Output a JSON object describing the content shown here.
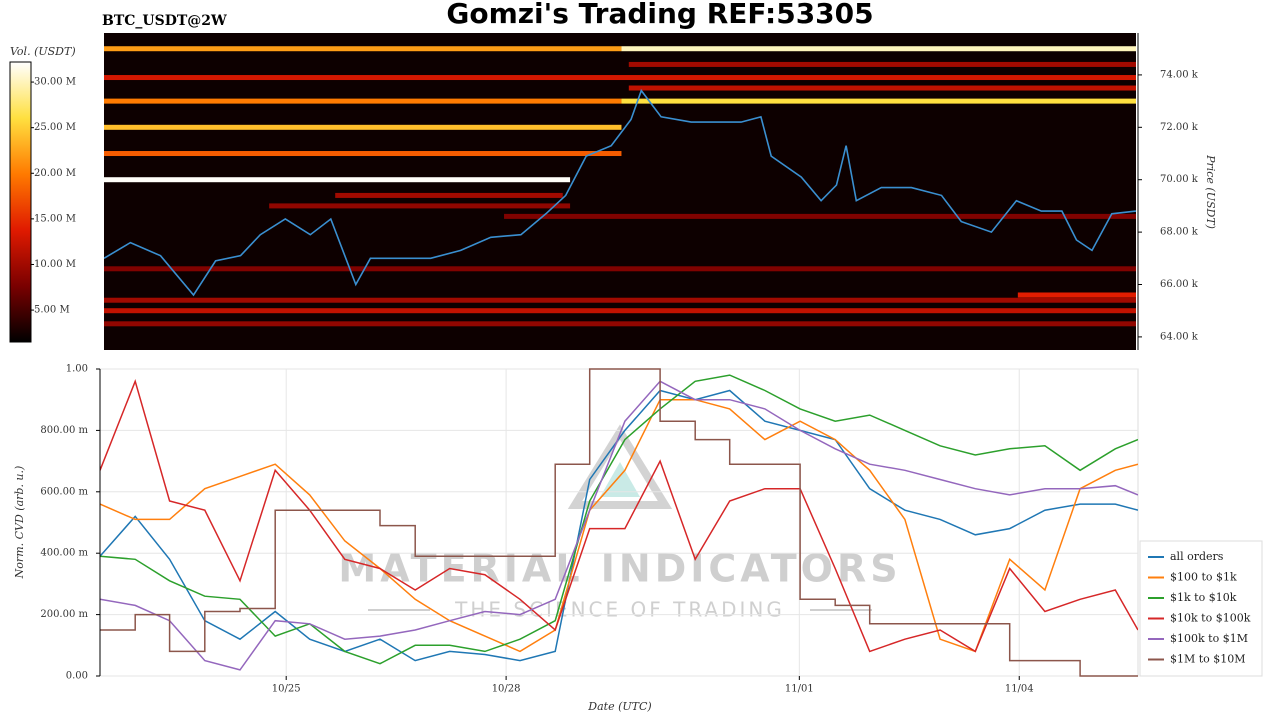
{
  "chart_data": [
    {
      "type": "heatmap",
      "symbol": "BTC_USDT@2W",
      "title": "Gomzi's Trading REF:53305",
      "colorbar_label": "Vol. (USDT)",
      "ylabel": "Price (USDT)",
      "colormap": [
        "#000000",
        "#7a0000",
        "#e01a00",
        "#ff7a00",
        "#ffe040",
        "#ffffff"
      ],
      "clim": [
        1500000,
        32200000
      ],
      "cticks": [
        {
          "value": 5000000,
          "label": "5.00 M"
        },
        {
          "value": 10000000,
          "label": "10.00 M"
        },
        {
          "value": 15000000,
          "label": "15.00 M"
        },
        {
          "value": 20000000,
          "label": "20.00 M"
        },
        {
          "value": 25000000,
          "label": "25.00 M"
        },
        {
          "value": 30000000,
          "label": "30.00 M"
        }
      ],
      "xlim": [
        0.05,
        14.11
      ],
      "ylim": [
        63500,
        75600
      ],
      "yticks": [
        {
          "value": 64000,
          "label": "64.00 k"
        },
        {
          "value": 66000,
          "label": "66.00 k"
        },
        {
          "value": 68000,
          "label": "68.00 k"
        },
        {
          "value": 70000,
          "label": "70.00 k"
        },
        {
          "value": 72000,
          "label": "72.00 k"
        },
        {
          "value": 74000,
          "label": "74.00 k"
        }
      ],
      "levels": [
        {
          "price": 75000,
          "start": 0.05,
          "end": 7.1,
          "volume": 22000000
        },
        {
          "price": 75000,
          "start": 7.1,
          "end": 14.11,
          "volume": 30000000
        },
        {
          "price": 74400,
          "start": 7.2,
          "end": 14.11,
          "volume": 10000000
        },
        {
          "price": 73900,
          "start": 0.05,
          "end": 14.11,
          "volume": 13000000
        },
        {
          "price": 73500,
          "start": 7.2,
          "end": 14.11,
          "volume": 12000000
        },
        {
          "price": 73000,
          "start": 0.05,
          "end": 7.1,
          "volume": 20000000
        },
        {
          "price": 73000,
          "start": 7.1,
          "end": 14.11,
          "volume": 26000000
        },
        {
          "price": 72000,
          "start": 0.05,
          "end": 7.1,
          "volume": 24000000
        },
        {
          "price": 71000,
          "start": 0.05,
          "end": 7.1,
          "volume": 18000000
        },
        {
          "price": 70000,
          "start": 0.05,
          "end": 6.4,
          "volume": 32000000
        },
        {
          "price": 69400,
          "start": 3.2,
          "end": 6.3,
          "volume": 10000000
        },
        {
          "price": 69000,
          "start": 2.3,
          "end": 6.4,
          "volume": 9000000
        },
        {
          "price": 68600,
          "start": 5.5,
          "end": 14.11,
          "volume": 8000000
        },
        {
          "price": 66600,
          "start": 0.05,
          "end": 14.11,
          "volume": 8000000
        },
        {
          "price": 65600,
          "start": 12.5,
          "end": 14.11,
          "volume": 14000000
        },
        {
          "price": 65400,
          "start": 0.05,
          "end": 14.11,
          "volume": 10000000
        },
        {
          "price": 65000,
          "start": 0.05,
          "end": 14.11,
          "volume": 12000000
        },
        {
          "price": 64500,
          "start": 0.05,
          "end": 14.11,
          "volume": 9000000
        }
      ],
      "x": [
        0.05,
        0.41,
        0.82,
        1.27,
        1.57,
        1.91,
        2.18,
        2.52,
        2.86,
        3.14,
        3.48,
        3.68,
        4.09,
        4.5,
        4.91,
        5.32,
        5.73,
        6.07,
        6.34,
        6.62,
        6.96,
        7.23,
        7.37,
        7.64,
        8.05,
        8.46,
        8.73,
        9.0,
        9.14,
        9.55,
        9.82,
        10.03,
        10.16,
        10.3,
        10.64,
        11.05,
        11.46,
        11.73,
        12.14,
        12.48,
        12.82,
        13.1,
        13.3,
        13.51,
        13.78,
        14.11
      ],
      "series": [
        {
          "color": "#3a8fd0",
          "values": [
            67000,
            67600,
            67100,
            65600,
            66900,
            67100,
            67900,
            68500,
            67900,
            68500,
            66000,
            67000,
            67000,
            67000,
            67300,
            67800,
            67900,
            68700,
            69400,
            70900,
            71300,
            72300,
            73400,
            72400,
            72200,
            72200,
            72200,
            72400,
            70900,
            70100,
            69200,
            69800,
            71300,
            69200,
            69700,
            69700,
            69400,
            68400,
            68000,
            69200,
            68800,
            68800,
            67700,
            67300,
            68700,
            68800
          ]
        }
      ]
    },
    {
      "type": "line",
      "xlabel": "Date (UTC)",
      "ylabel": "Norm. CVD (arb. u.)",
      "watermark": {
        "title": "MATERIAL INDICATORS",
        "subtitle": "THE SCIENCE OF TRADING"
      },
      "grid": true,
      "legend": "lower right",
      "xlim": [
        0,
        14.16
      ],
      "xticks": [
        {
          "value": 2.54,
          "label": "10/25"
        },
        {
          "value": 5.54,
          "label": "10/28"
        },
        {
          "value": 9.54,
          "label": "11/01"
        },
        {
          "value": 12.54,
          "label": "11/04"
        }
      ],
      "ylim": [
        0,
        1
      ],
      "yticks": [
        {
          "value": 0,
          "label": "0.00"
        },
        {
          "value": 0.2,
          "label": "200.00 m"
        },
        {
          "value": 0.4,
          "label": "400.00 m"
        },
        {
          "value": 0.6,
          "label": "600.00 m"
        },
        {
          "value": 0.8,
          "label": "800.00 m"
        },
        {
          "value": 1,
          "label": "1.00"
        }
      ],
      "x": [
        0,
        0.48,
        0.95,
        1.43,
        1.91,
        2.39,
        2.86,
        3.34,
        3.82,
        4.3,
        4.77,
        5.25,
        5.73,
        6.21,
        6.68,
        7.16,
        7.64,
        8.12,
        8.59,
        9.07,
        9.55,
        10.03,
        10.5,
        10.98,
        11.46,
        11.94,
        12.41,
        12.89,
        13.37,
        13.85,
        14.16
      ],
      "series": [
        {
          "name": "all orders",
          "color": "#1f77b4",
          "values": [
            0.39,
            0.52,
            0.38,
            0.18,
            0.12,
            0.21,
            0.12,
            0.08,
            0.12,
            0.05,
            0.08,
            0.07,
            0.05,
            0.08,
            0.64,
            0.8,
            0.93,
            0.9,
            0.93,
            0.83,
            0.8,
            0.77,
            0.61,
            0.54,
            0.51,
            0.46,
            0.48,
            0.54,
            0.56,
            0.56,
            0.54
          ]
        },
        {
          "name": "$100 to $1k",
          "color": "#ff7f0e",
          "values": [
            0.56,
            0.51,
            0.51,
            0.61,
            0.65,
            0.69,
            0.59,
            0.44,
            0.35,
            0.25,
            0.18,
            0.13,
            0.08,
            0.15,
            0.54,
            0.67,
            0.9,
            0.9,
            0.87,
            0.77,
            0.83,
            0.77,
            0.67,
            0.51,
            0.12,
            0.08,
            0.38,
            0.28,
            0.61,
            0.67,
            0.69
          ]
        },
        {
          "name": "$1k to $10k",
          "color": "#2ca02c",
          "values": [
            0.39,
            0.38,
            0.31,
            0.26,
            0.25,
            0.13,
            0.17,
            0.08,
            0.04,
            0.1,
            0.1,
            0.08,
            0.12,
            0.18,
            0.57,
            0.77,
            0.87,
            0.96,
            0.98,
            0.93,
            0.87,
            0.83,
            0.85,
            0.8,
            0.75,
            0.72,
            0.74,
            0.75,
            0.67,
            0.74,
            0.77
          ]
        },
        {
          "name": "$10k to $100k",
          "color": "#d62728",
          "values": [
            0.67,
            0.96,
            0.57,
            0.54,
            0.31,
            0.67,
            0.54,
            0.38,
            0.35,
            0.28,
            0.35,
            0.33,
            0.25,
            0.15,
            0.48,
            0.48,
            0.7,
            0.38,
            0.57,
            0.61,
            0.61,
            0.35,
            0.08,
            0.12,
            0.15,
            0.08,
            0.35,
            0.21,
            0.25,
            0.28,
            0.15
          ]
        },
        {
          "name": "$100k to $1M",
          "color": "#9467bd",
          "values": [
            0.25,
            0.23,
            0.18,
            0.05,
            0.02,
            0.18,
            0.17,
            0.12,
            0.13,
            0.15,
            0.18,
            0.21,
            0.2,
            0.25,
            0.54,
            0.83,
            0.96,
            0.9,
            0.9,
            0.87,
            0.8,
            0.74,
            0.69,
            0.67,
            0.64,
            0.61,
            0.59,
            0.61,
            0.61,
            0.62,
            0.59
          ]
        },
        {
          "name": "$1M to $10M",
          "color": "#8c564b",
          "step": true,
          "values": [
            0.15,
            0.2,
            0.08,
            0.21,
            0.22,
            0.54,
            0.54,
            0.54,
            0.49,
            0.39,
            0.39,
            0.39,
            0.39,
            0.69,
            1.0,
            1.0,
            0.83,
            0.77,
            0.69,
            0.69,
            0.25,
            0.23,
            0.17,
            0.17,
            0.17,
            0.17,
            0.05,
            0.05,
            0.0,
            0.0,
            0.0
          ]
        }
      ]
    }
  ]
}
